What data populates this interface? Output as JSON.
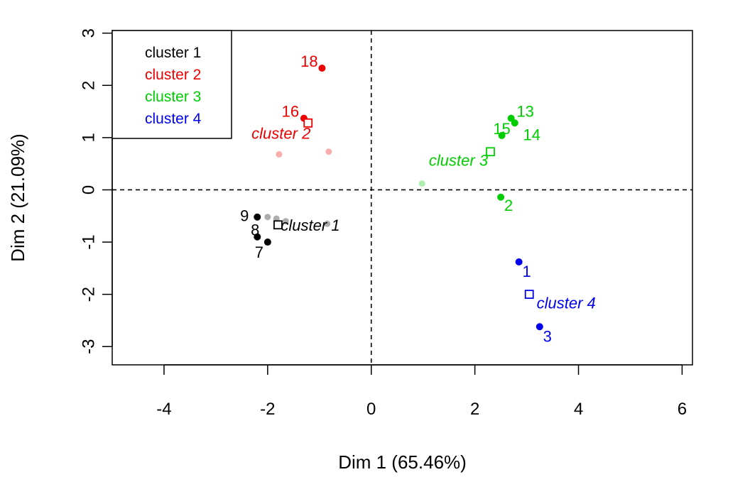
{
  "chart_data": {
    "type": "scatter",
    "title": "",
    "xlabel": "Dim 1 (65.46%)",
    "ylabel": "Dim 2 (21.09%)",
    "xlim": [
      -5,
      6.2
    ],
    "ylim": [
      -3.35,
      3.05
    ],
    "x_ticks": [
      -4,
      -2,
      0,
      2,
      4,
      6
    ],
    "y_ticks": [
      -3,
      -2,
      -1,
      0,
      1,
      2,
      3
    ],
    "grid": false,
    "reference_lines": {
      "x": 0,
      "y": 0,
      "style": "dashed"
    },
    "legend": {
      "placement": "top-left",
      "entries": [
        {
          "label": "cluster 1",
          "color": "#000000"
        },
        {
          "label": "cluster 2",
          "color": "#ee0000"
        },
        {
          "label": "cluster 3",
          "color": "#00cd00"
        },
        {
          "label": "cluster 4",
          "color": "#0000ee"
        }
      ]
    },
    "series": [
      {
        "cluster": 1,
        "color": "#000000",
        "center": {
          "x": -1.8,
          "y": -0.67,
          "label": "cluster 1"
        },
        "points": [
          {
            "label": "9",
            "x": -2.2,
            "y": -0.52
          },
          {
            "label": "8",
            "x": -2.2,
            "y": -0.9
          },
          {
            "label": "7",
            "x": -2.0,
            "y": -1.0
          }
        ],
        "faded_points": [
          {
            "x": -2.0,
            "y": -0.52
          },
          {
            "x": -1.83,
            "y": -0.55
          },
          {
            "x": -1.65,
            "y": -0.6
          },
          {
            "x": -0.85,
            "y": -0.65
          }
        ]
      },
      {
        "cluster": 2,
        "color": "#ee0000",
        "center": {
          "x": -1.22,
          "y": 1.28,
          "label": "cluster 2"
        },
        "points": [
          {
            "label": "18",
            "x": -0.95,
            "y": 2.33
          },
          {
            "label": "16",
            "x": -1.3,
            "y": 1.37
          }
        ],
        "faded_points": [
          {
            "x": -1.78,
            "y": 0.68
          },
          {
            "x": -0.82,
            "y": 0.73
          }
        ]
      },
      {
        "cluster": 3,
        "color": "#00cd00",
        "center": {
          "x": 2.3,
          "y": 0.73,
          "label": "cluster 3"
        },
        "points": [
          {
            "label": "13",
            "x": 2.7,
            "y": 1.37
          },
          {
            "label": "14",
            "x": 2.77,
            "y": 1.28
          },
          {
            "label": "15",
            "x": 2.52,
            "y": 1.04
          },
          {
            "label": "2",
            "x": 2.5,
            "y": -0.14
          }
        ],
        "faded_points": [
          {
            "x": 0.98,
            "y": 0.12
          }
        ]
      },
      {
        "cluster": 4,
        "color": "#0000ee",
        "center": {
          "x": 3.05,
          "y": -2.0,
          "label": "cluster 4"
        },
        "points": [
          {
            "label": "1",
            "x": 2.85,
            "y": -1.38
          },
          {
            "label": "3",
            "x": 3.25,
            "y": -2.62
          }
        ],
        "faded_points": []
      }
    ]
  }
}
